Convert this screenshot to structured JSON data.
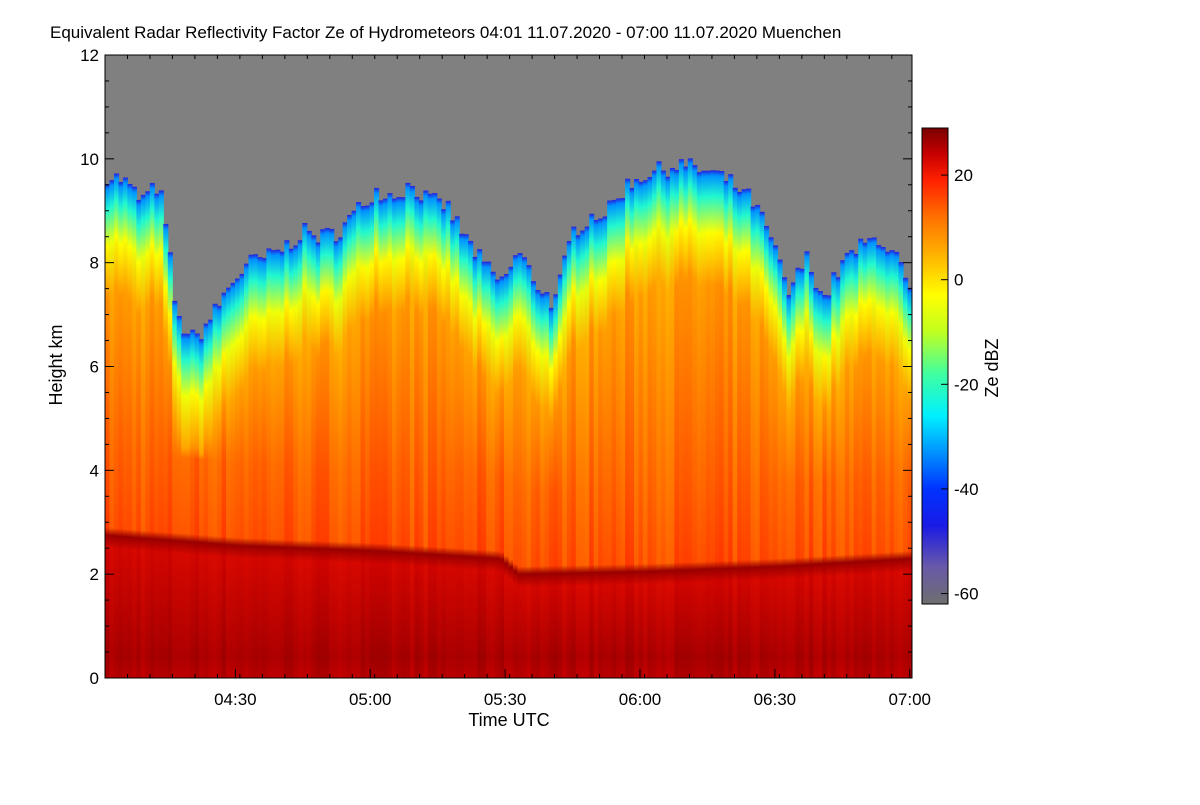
{
  "chart_data": {
    "type": "heatmap",
    "title": "Equivalent Radar Reflectivity Factor Ze of Hydrometeors   04:01 11.07.2020 - 07:00 11.07.2020 Muenchen",
    "xlabel": "Time UTC",
    "ylabel": "Height km",
    "colorbar_label": "Ze dBZ",
    "x_ticks": [
      {
        "t": 29,
        "label": "04:30"
      },
      {
        "t": 59,
        "label": "05:00"
      },
      {
        "t": 89,
        "label": "05:30"
      },
      {
        "t": 119,
        "label": "06:00"
      },
      {
        "t": 149,
        "label": "06:30"
      },
      {
        "t": 179,
        "label": "07:00"
      }
    ],
    "x_range_minutes": [
      0,
      179.5
    ],
    "y_ticks": [
      0,
      2,
      4,
      6,
      8,
      10,
      12
    ],
    "ylim": [
      0,
      12
    ],
    "colorbar_ticks": [
      20,
      0,
      -20,
      -40,
      -60
    ],
    "colorbar_range": [
      -62,
      29
    ],
    "no_signal_color": "#808080",
    "colormap": [
      {
        "v": -62,
        "c": "#6e6e6e"
      },
      {
        "v": -55,
        "c": "#6a5aa8"
      },
      {
        "v": -47,
        "c": "#1a1ae6"
      },
      {
        "v": -40,
        "c": "#0033ff"
      },
      {
        "v": -32,
        "c": "#00a0ff"
      },
      {
        "v": -26,
        "c": "#00f0ff"
      },
      {
        "v": -18,
        "c": "#40ffa0"
      },
      {
        "v": -10,
        "c": "#c0ff20"
      },
      {
        "v": -3,
        "c": "#ffff00"
      },
      {
        "v": 5,
        "c": "#ffb000"
      },
      {
        "v": 12,
        "c": "#ff7000"
      },
      {
        "v": 19,
        "c": "#ff2000"
      },
      {
        "v": 24,
        "c": "#c80000"
      },
      {
        "v": 29,
        "c": "#7a0000"
      }
    ],
    "echo_top_km": [
      {
        "t": 0,
        "h": 9.7
      },
      {
        "t": 4,
        "h": 9.6
      },
      {
        "t": 8,
        "h": 9.2
      },
      {
        "t": 12,
        "h": 9.5
      },
      {
        "t": 14,
        "h": 8.4
      },
      {
        "t": 16,
        "h": 6.9
      },
      {
        "t": 20,
        "h": 6.5
      },
      {
        "t": 24,
        "h": 7.0
      },
      {
        "t": 28,
        "h": 7.6
      },
      {
        "t": 32,
        "h": 8.0
      },
      {
        "t": 36,
        "h": 8.1
      },
      {
        "t": 40,
        "h": 8.3
      },
      {
        "t": 44,
        "h": 8.6
      },
      {
        "t": 48,
        "h": 8.5
      },
      {
        "t": 52,
        "h": 8.6
      },
      {
        "t": 56,
        "h": 9.0
      },
      {
        "t": 60,
        "h": 9.4
      },
      {
        "t": 64,
        "h": 9.3
      },
      {
        "t": 68,
        "h": 9.5
      },
      {
        "t": 72,
        "h": 9.2
      },
      {
        "t": 76,
        "h": 9.1
      },
      {
        "t": 80,
        "h": 8.5
      },
      {
        "t": 84,
        "h": 8.0
      },
      {
        "t": 88,
        "h": 7.6
      },
      {
        "t": 92,
        "h": 8.2
      },
      {
        "t": 96,
        "h": 7.6
      },
      {
        "t": 100,
        "h": 7.2
      },
      {
        "t": 104,
        "h": 8.6
      },
      {
        "t": 108,
        "h": 8.9
      },
      {
        "t": 112,
        "h": 9.0
      },
      {
        "t": 116,
        "h": 9.5
      },
      {
        "t": 120,
        "h": 9.7
      },
      {
        "t": 124,
        "h": 9.8
      },
      {
        "t": 128,
        "h": 9.9
      },
      {
        "t": 132,
        "h": 9.8
      },
      {
        "t": 136,
        "h": 9.7
      },
      {
        "t": 140,
        "h": 9.5
      },
      {
        "t": 144,
        "h": 9.2
      },
      {
        "t": 148,
        "h": 8.5
      },
      {
        "t": 152,
        "h": 7.4
      },
      {
        "t": 156,
        "h": 8.1
      },
      {
        "t": 160,
        "h": 7.3
      },
      {
        "t": 164,
        "h": 8.0
      },
      {
        "t": 168,
        "h": 8.3
      },
      {
        "t": 172,
        "h": 8.5
      },
      {
        "t": 176,
        "h": 8.1
      },
      {
        "t": 179.5,
        "h": 7.3
      }
    ],
    "melting_layer_km": [
      {
        "t": 0,
        "h": 2.75
      },
      {
        "t": 30,
        "h": 2.55
      },
      {
        "t": 60,
        "h": 2.45
      },
      {
        "t": 88,
        "h": 2.3
      },
      {
        "t": 92,
        "h": 2.0
      },
      {
        "t": 120,
        "h": 2.05
      },
      {
        "t": 150,
        "h": 2.15
      },
      {
        "t": 179.5,
        "h": 2.3
      }
    ]
  }
}
